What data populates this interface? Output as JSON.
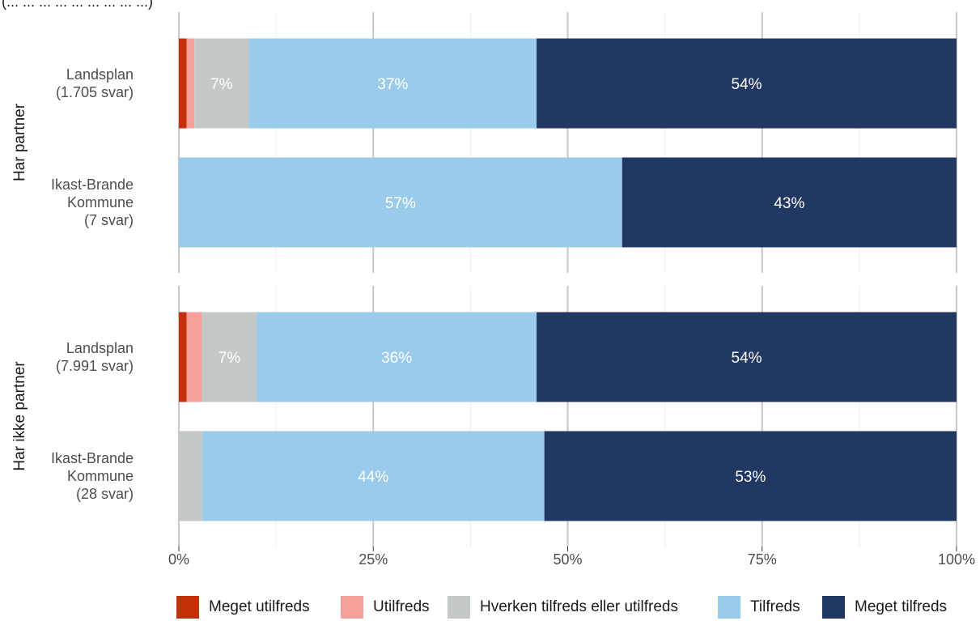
{
  "chart_data": {
    "type": "bar",
    "orientation": "horizontal",
    "stacked": true,
    "header_fragment": "(... ... ... ... ... ... ... ... ...)",
    "xlim": [
      0,
      100
    ],
    "x_ticks": [
      "0%",
      "25%",
      "50%",
      "75%",
      "100%"
    ],
    "x_tick_values": [
      0,
      25,
      50,
      75,
      100
    ],
    "grid": true,
    "legend_position": "bottom",
    "facets": [
      {
        "label": "Har partner",
        "rows": [
          {
            "label": [
              "Landsplan",
              "(1.705 svar)"
            ],
            "values": [
              1,
              1,
              7,
              37,
              54
            ],
            "labels": [
              "",
              "",
              "7%",
              "37%",
              "54%"
            ]
          },
          {
            "label": [
              "Ikast-Brande",
              "Kommune",
              "(7 svar)"
            ],
            "values": [
              0,
              0,
              0,
              57,
              43
            ],
            "labels": [
              "",
              "",
              "",
              "57%",
              "43%"
            ]
          }
        ]
      },
      {
        "label": "Har ikke partner",
        "rows": [
          {
            "label": [
              "Landsplan",
              "(7.991 svar)"
            ],
            "values": [
              1,
              2,
              7,
              36,
              54
            ],
            "labels": [
              "",
              "",
              "7%",
              "36%",
              "54%"
            ]
          },
          {
            "label": [
              "Ikast-Brande",
              "Kommune",
              "(28 svar)"
            ],
            "values": [
              0,
              0,
              3,
              44,
              53
            ],
            "labels": [
              "",
              "",
              "",
              "44%",
              "53%"
            ]
          }
        ]
      }
    ],
    "series": [
      {
        "name": "Meget utilfreds",
        "color": "#c3310a"
      },
      {
        "name": "Utilfreds",
        "color": "#f6a09c"
      },
      {
        "name": "Hverken tilfreds eller utilfreds",
        "color": "#c4c9c8"
      },
      {
        "name": "Tilfreds",
        "color": "#9acbeb"
      },
      {
        "name": "Meget tilfreds",
        "color": "#213863"
      }
    ]
  }
}
